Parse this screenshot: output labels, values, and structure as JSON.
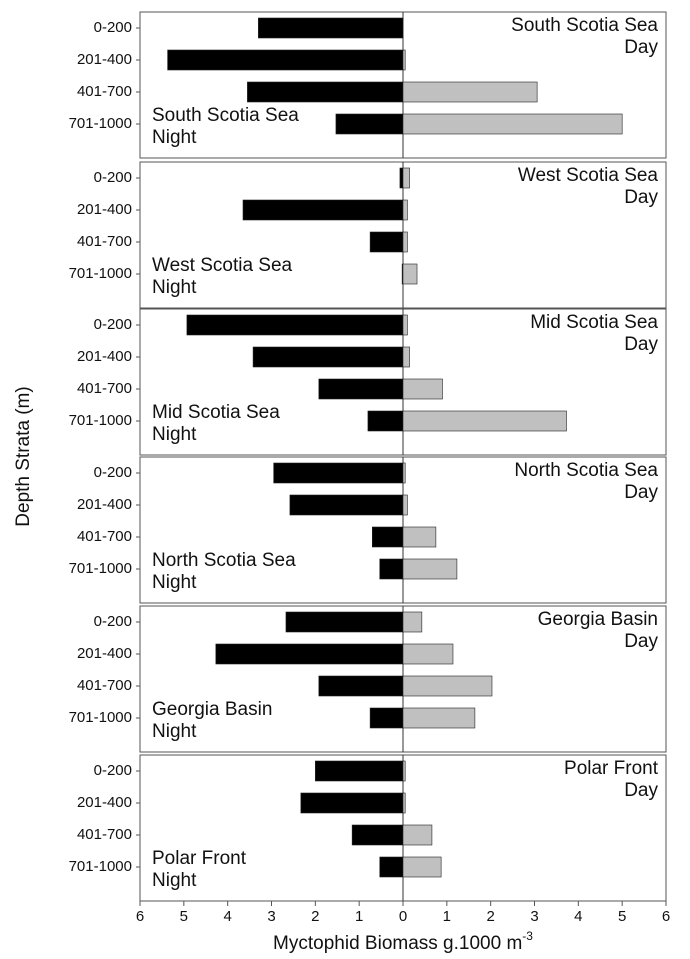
{
  "chart_data": [
    {
      "type": "bar",
      "categories": [
        "0-200",
        "201-400",
        "401-700",
        "701-1000"
      ],
      "xlim": [
        -6,
        6
      ],
      "series": [
        {
          "name": [
            "South Scotia Sea",
            "Night"
          ],
          "color": "#000000",
          "values": [
            -3.3,
            -5.37,
            -3.55,
            -1.53
          ]
        },
        {
          "name": [
            "South Scotia Sea",
            "Day"
          ],
          "color": "#c0c0c0",
          "values": [
            0,
            0.05,
            3.06,
            5.0
          ]
        }
      ]
    },
    {
      "type": "bar",
      "categories": [
        "0-200",
        "201-400",
        "401-700",
        "701-1000"
      ],
      "xlim": [
        -6,
        6
      ],
      "series": [
        {
          "name": [
            "West Scotia Sea",
            "Night"
          ],
          "color": "#000000",
          "values": [
            -0.07,
            -3.65,
            -0.75,
            -0.02
          ]
        },
        {
          "name": [
            "West Scotia Sea",
            "Day"
          ],
          "color": "#c0c0c0",
          "values": [
            0.15,
            0.1,
            0.1,
            0.32
          ]
        }
      ]
    },
    {
      "type": "bar",
      "categories": [
        "0-200",
        "201-400",
        "401-700",
        "701-1000"
      ],
      "xlim": [
        -6,
        6
      ],
      "series": [
        {
          "name": [
            "Mid Scotia Sea",
            "Night"
          ],
          "color": "#000000",
          "values": [
            -4.93,
            -3.42,
            -1.92,
            -0.8
          ]
        },
        {
          "name": [
            "Mid Scotia Sea",
            "Day"
          ],
          "color": "#c0c0c0",
          "values": [
            0.1,
            0.15,
            0.9,
            3.73
          ]
        }
      ]
    },
    {
      "type": "bar",
      "categories": [
        "0-200",
        "201-400",
        "401-700",
        "701-1000"
      ],
      "xlim": [
        -6,
        6
      ],
      "series": [
        {
          "name": [
            "North Scotia Sea",
            "Night"
          ],
          "color": "#000000",
          "values": [
            -2.95,
            -2.58,
            -0.7,
            -0.53
          ]
        },
        {
          "name": [
            "North Scotia Sea",
            "Day"
          ],
          "color": "#c0c0c0",
          "values": [
            0.05,
            0.1,
            0.75,
            1.23
          ]
        }
      ]
    },
    {
      "type": "bar",
      "categories": [
        "0-200",
        "201-400",
        "401-700",
        "701-1000"
      ],
      "xlim": [
        -6,
        6
      ],
      "series": [
        {
          "name": [
            "Georgia Basin",
            "Night"
          ],
          "color": "#000000",
          "values": [
            -2.67,
            -4.27,
            -1.92,
            -0.75
          ]
        },
        {
          "name": [
            "Georgia Basin",
            "Day"
          ],
          "color": "#c0c0c0",
          "values": [
            0.43,
            1.14,
            2.03,
            1.64
          ]
        }
      ]
    },
    {
      "type": "bar",
      "categories": [
        "0-200",
        "201-400",
        "401-700",
        "701-1000"
      ],
      "xlim": [
        -6,
        6
      ],
      "series": [
        {
          "name": [
            "Polar Front",
            "Night"
          ],
          "color": "#000000",
          "values": [
            -2.0,
            -2.33,
            -1.16,
            -0.53
          ]
        },
        {
          "name": [
            "Polar Front",
            "Day"
          ],
          "color": "#c0c0c0",
          "values": [
            0.05,
            0.05,
            0.66,
            0.87
          ]
        }
      ],
      "xticks": [
        {
          "value": -6,
          "label": "6"
        },
        {
          "value": -5,
          "label": "5"
        },
        {
          "value": -4,
          "label": "4"
        },
        {
          "value": -3,
          "label": "3"
        },
        {
          "value": -2,
          "label": "2"
        },
        {
          "value": -1,
          "label": "1"
        },
        0,
        1,
        2,
        3,
        4,
        5,
        6
      ],
      "xlabel": "Myctophid Biomass g.1000 m",
      "xlabel_sup": "-3",
      "ylabel": "Depth Strata (m)"
    }
  ]
}
